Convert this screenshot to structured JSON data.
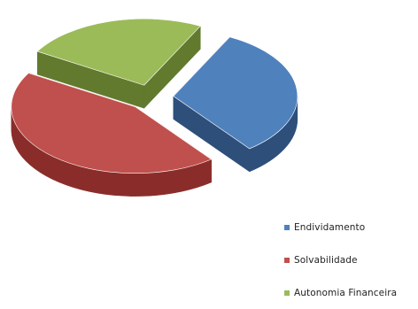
{
  "chart_data": {
    "type": "pie",
    "style": "3d-exploded",
    "slices": [
      {
        "name": "Endividamento",
        "value": 32,
        "color": "#4F81BD",
        "shade": "#2E4F7A"
      },
      {
        "name": "Solvabilidade",
        "value": 44,
        "color": "#C0504D",
        "shade": "#8A2D2A"
      },
      {
        "name": "Autonomia Financeira",
        "value": 24,
        "color": "#9BBB59",
        "shade": "#627A2E"
      }
    ],
    "legend_position": "bottom-right"
  }
}
